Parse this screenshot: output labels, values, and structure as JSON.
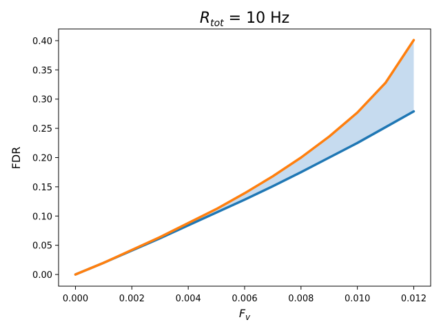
{
  "chart_data": {
    "type": "line",
    "title_symbol": "R",
    "title_subscript": "tot",
    "title_suffix": " = 10 Hz",
    "xlabel_symbol": "F",
    "xlabel_subscript": "v",
    "ylabel": "FDR",
    "xlim": [
      -0.0006,
      0.0126
    ],
    "ylim": [
      -0.02,
      0.42
    ],
    "xticks": [
      0.0,
      0.002,
      0.004,
      0.006,
      0.008,
      0.01,
      0.012
    ],
    "xtick_labels": [
      "0.000",
      "0.002",
      "0.004",
      "0.006",
      "0.008",
      "0.010",
      "0.012"
    ],
    "yticks": [
      0.0,
      0.05,
      0.1,
      0.15,
      0.2,
      0.25,
      0.3,
      0.35,
      0.4
    ],
    "ytick_labels": [
      "0.00",
      "0.05",
      "0.10",
      "0.15",
      "0.20",
      "0.25",
      "0.30",
      "0.35",
      "0.40"
    ],
    "x": [
      0.0,
      0.001,
      0.002,
      0.003,
      0.004,
      0.005,
      0.006,
      0.007,
      0.008,
      0.009,
      0.01,
      0.011,
      0.012
    ],
    "series": [
      {
        "color": "#1f77b4",
        "values": [
          0.0,
          0.02,
          0.041,
          0.062,
          0.084,
          0.106,
          0.128,
          0.151,
          0.175,
          0.2,
          0.225,
          0.252,
          0.279
        ]
      },
      {
        "color": "#ff7f0e",
        "values": [
          0.0,
          0.02,
          0.042,
          0.064,
          0.088,
          0.112,
          0.139,
          0.168,
          0.2,
          0.236,
          0.277,
          0.328,
          0.401
        ]
      }
    ],
    "fill_between": {
      "color": "#c6dbef"
    },
    "grid": false,
    "legend": "none"
  }
}
